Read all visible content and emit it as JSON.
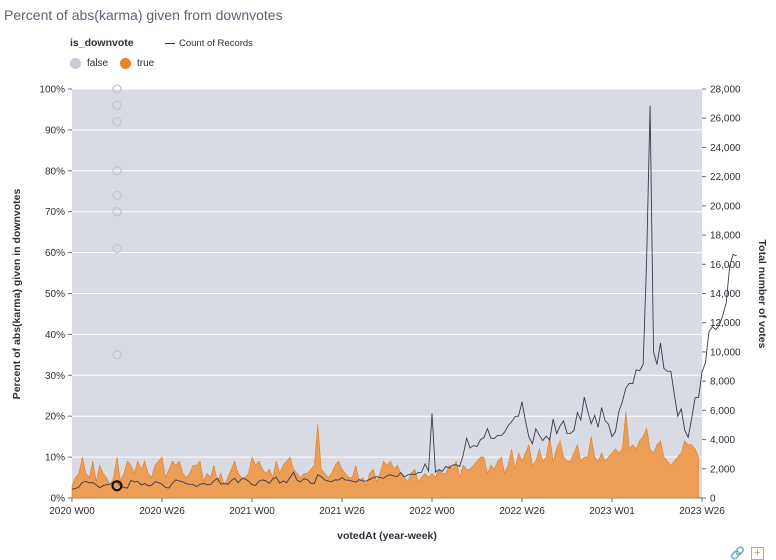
{
  "title": "Percent of abs(karma) given from downvotes",
  "legend": {
    "heading": "is_downvote",
    "count_label": "Count of Records",
    "items": [
      {
        "label": "false",
        "color": "#c9c9d6"
      },
      {
        "label": "true",
        "color": "#e8832a"
      }
    ]
  },
  "colors": {
    "plot_background": "#d8dae4",
    "area": "#ed9a4e",
    "line": "#3a3c4a",
    "grid": "#ffffff"
  },
  "icons": [
    "link-icon",
    "plus-icon"
  ],
  "chart_data": {
    "type": "area",
    "title": "Percent of abs(karma) given from downvotes",
    "xlabel": "votedAt (year-week)",
    "ylabel": "Percent of abs(karma) given in downvotes",
    "y2label": "Total number of votes",
    "x_tick_labels": [
      "2020 W00",
      "2020 W26",
      "2021 W00",
      "2021 W26",
      "2022 W00",
      "2022 W26",
      "2023 W01",
      "2023 W26"
    ],
    "y_tick_labels": [
      "0%",
      "10%",
      "20%",
      "30%",
      "40%",
      "50%",
      "60%",
      "70%",
      "80%",
      "90%",
      "100%"
    ],
    "y2_tick_labels": [
      "0",
      "2,000",
      "4,000",
      "6,000",
      "8,000",
      "10,000",
      "12,000",
      "14,000",
      "16,000",
      "18,000",
      "20,000",
      "22,000",
      "24,000",
      "26,000",
      "28,000"
    ],
    "ylim": [
      0,
      100
    ],
    "y2lim": [
      0,
      28000
    ],
    "x_week_range": [
      0,
      182
    ],
    "x_tick_weeks": [
      0,
      26,
      52,
      78,
      104,
      130,
      156,
      182
    ],
    "series": [
      {
        "name": "true (percent downvoted)",
        "axis": "left",
        "values": [
          3,
          5,
          6,
          10,
          6,
          5,
          9,
          4,
          8,
          6,
          5,
          3,
          5,
          10,
          4,
          6,
          9,
          8,
          6,
          9,
          7,
          9,
          6,
          5,
          8,
          9,
          10,
          5,
          7,
          9,
          8,
          9,
          6,
          5,
          6,
          8,
          8,
          9,
          4,
          6,
          5,
          8,
          4,
          6,
          3,
          5,
          7,
          9,
          6,
          5,
          5,
          6,
          10,
          8,
          9,
          7,
          6,
          7,
          5,
          9,
          6,
          8,
          9,
          10,
          7,
          6,
          5,
          6,
          6,
          7,
          8,
          18,
          7,
          6,
          5,
          6,
          8,
          9,
          7,
          6,
          5,
          5,
          8,
          4,
          5,
          3,
          6,
          7,
          4,
          6,
          9,
          8,
          9,
          7,
          8,
          6,
          5,
          4,
          6,
          7,
          4,
          5,
          6,
          5,
          6,
          5,
          7,
          6,
          6,
          8,
          7,
          9,
          5,
          8,
          7,
          7,
          8,
          9,
          10,
          10,
          6,
          8,
          7,
          9,
          10,
          6,
          8,
          12,
          7,
          11,
          9,
          11,
          13,
          8,
          9,
          12,
          9,
          10,
          15,
          9,
          12,
          14,
          10,
          9,
          9,
          11,
          13,
          9,
          10,
          10,
          15,
          10,
          9,
          11,
          9,
          10,
          11,
          12,
          11,
          12,
          21,
          12,
          13,
          12,
          14,
          15,
          17,
          12,
          11,
          13,
          14,
          10,
          9,
          8,
          9,
          10,
          11,
          14,
          13,
          13,
          12,
          10
        ]
      },
      {
        "name": "Count of Records",
        "axis": "right",
        "values": [
          600,
          650,
          760,
          1070,
          1140,
          1030,
          1060,
          900,
          700,
          850,
          910,
          960,
          1110,
          1090,
          830,
          720,
          680,
          1210,
          1100,
          1130,
          890,
          990,
          840,
          880,
          1120,
          1050,
          940,
          720,
          680,
          1010,
          1240,
          1170,
          1110,
          980,
          940,
          920,
          780,
          940,
          1000,
          900,
          930,
          1160,
          1350,
          950,
          1010,
          930,
          1190,
          1350,
          1040,
          1310,
          1310,
          1160,
          920,
          860,
          1150,
          1240,
          1170,
          1010,
          1300,
          1420,
          1020,
          1170,
          1050,
          1410,
          1760,
          1220,
          1100,
          1320,
          1260,
          1010,
          1000,
          1590,
          1460,
          1240,
          1160,
          1120,
          1240,
          1230,
          1400,
          1230,
          1220,
          1150,
          1090,
          1260,
          1180,
          1150,
          1270,
          1390,
          1460,
          1410,
          1340,
          1520,
          1590,
          1500,
          1470,
          1730,
          1440,
          1580,
          1650,
          1610,
          1730,
          1770,
          2330,
          1840,
          5780,
          1770,
          1940,
          1830,
          2160,
          2050,
          2260,
          2270,
          2160,
          2940,
          4090,
          3430,
          3590,
          3520,
          3990,
          4130,
          4750,
          4100,
          4070,
          4300,
          4260,
          4520,
          4960,
          5220,
          5580,
          5610,
          6580,
          5280,
          4170,
          3720,
          4740,
          4300,
          3930,
          4240,
          3970,
          5400,
          4410,
          4930,
          5280,
          4430,
          4420,
          4620,
          5850,
          5340,
          6910,
          5920,
          5090,
          5650,
          4840,
          6200,
          5300,
          5040,
          4200,
          4550,
          5940,
          6600,
          7530,
          7850,
          7830,
          8780,
          8710,
          9140,
          16300,
          26860,
          10000,
          9140,
          10610,
          8870,
          8670,
          8670,
          7110,
          5600,
          6100,
          4650,
          4150,
          5420,
          6860,
          6890,
          8620,
          9270,
          11370,
          11730,
          11530,
          11830,
          12500,
          13360,
          15890,
          16670,
          16580
        ]
      }
    ],
    "false_points_percent": [
      100,
      96,
      92,
      80,
      74,
      70,
      61,
      35
    ],
    "false_points_week": 13,
    "highlighted_point": {
      "week": 13,
      "percent": 3
    }
  }
}
